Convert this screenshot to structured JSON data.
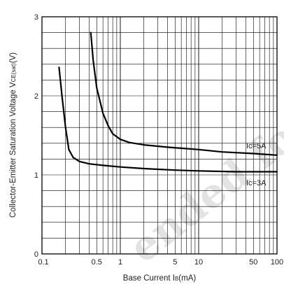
{
  "chart_data": {
    "type": "line",
    "title": "",
    "xlabel": "Base Current I",
    "xlabel_sub": "B",
    "xlabel_unit": "(mA)",
    "ylabel": "Collector-Emitter Saturation Voltage V",
    "ylabel_sub": "CE(sat)",
    "ylabel_unit": "(V)",
    "xscale": "log",
    "xlim": [
      0.1,
      100
    ],
    "ylim": [
      0,
      3
    ],
    "grid": true,
    "x_ticks": [
      {
        "value": 0.1,
        "label": "0.1"
      },
      {
        "value": 0.5,
        "label": "0.5"
      },
      {
        "value": 1,
        "label": "1"
      },
      {
        "value": 5,
        "label": "5"
      },
      {
        "value": 10,
        "label": "10"
      },
      {
        "value": 50,
        "label": "50"
      },
      {
        "value": 100,
        "label": "100"
      }
    ],
    "y_ticks": [
      {
        "value": 0,
        "label": "0"
      },
      {
        "value": 1,
        "label": "1"
      },
      {
        "value": 2,
        "label": "2"
      },
      {
        "value": 3,
        "label": "3"
      }
    ],
    "series": [
      {
        "name": "Ic=5A",
        "label_text": "Ic=5A",
        "points": [
          [
            0.42,
            2.8
          ],
          [
            0.45,
            2.45
          ],
          [
            0.5,
            2.1
          ],
          [
            0.6,
            1.78
          ],
          [
            0.7,
            1.62
          ],
          [
            0.8,
            1.52
          ],
          [
            1.0,
            1.45
          ],
          [
            1.3,
            1.41
          ],
          [
            2.0,
            1.38
          ],
          [
            4.0,
            1.35
          ],
          [
            10,
            1.32
          ],
          [
            20,
            1.29
          ],
          [
            50,
            1.27
          ],
          [
            100,
            1.25
          ]
        ]
      },
      {
        "name": "Ic=3A",
        "label_text": "Ic=3A",
        "points": [
          [
            0.165,
            2.36
          ],
          [
            0.18,
            2.0
          ],
          [
            0.2,
            1.6
          ],
          [
            0.22,
            1.32
          ],
          [
            0.25,
            1.22
          ],
          [
            0.3,
            1.17
          ],
          [
            0.4,
            1.14
          ],
          [
            0.6,
            1.12
          ],
          [
            1.0,
            1.1
          ],
          [
            2.0,
            1.08
          ],
          [
            5.0,
            1.06
          ],
          [
            10,
            1.05
          ],
          [
            30,
            1.04
          ],
          [
            100,
            1.04
          ]
        ]
      }
    ]
  }
}
